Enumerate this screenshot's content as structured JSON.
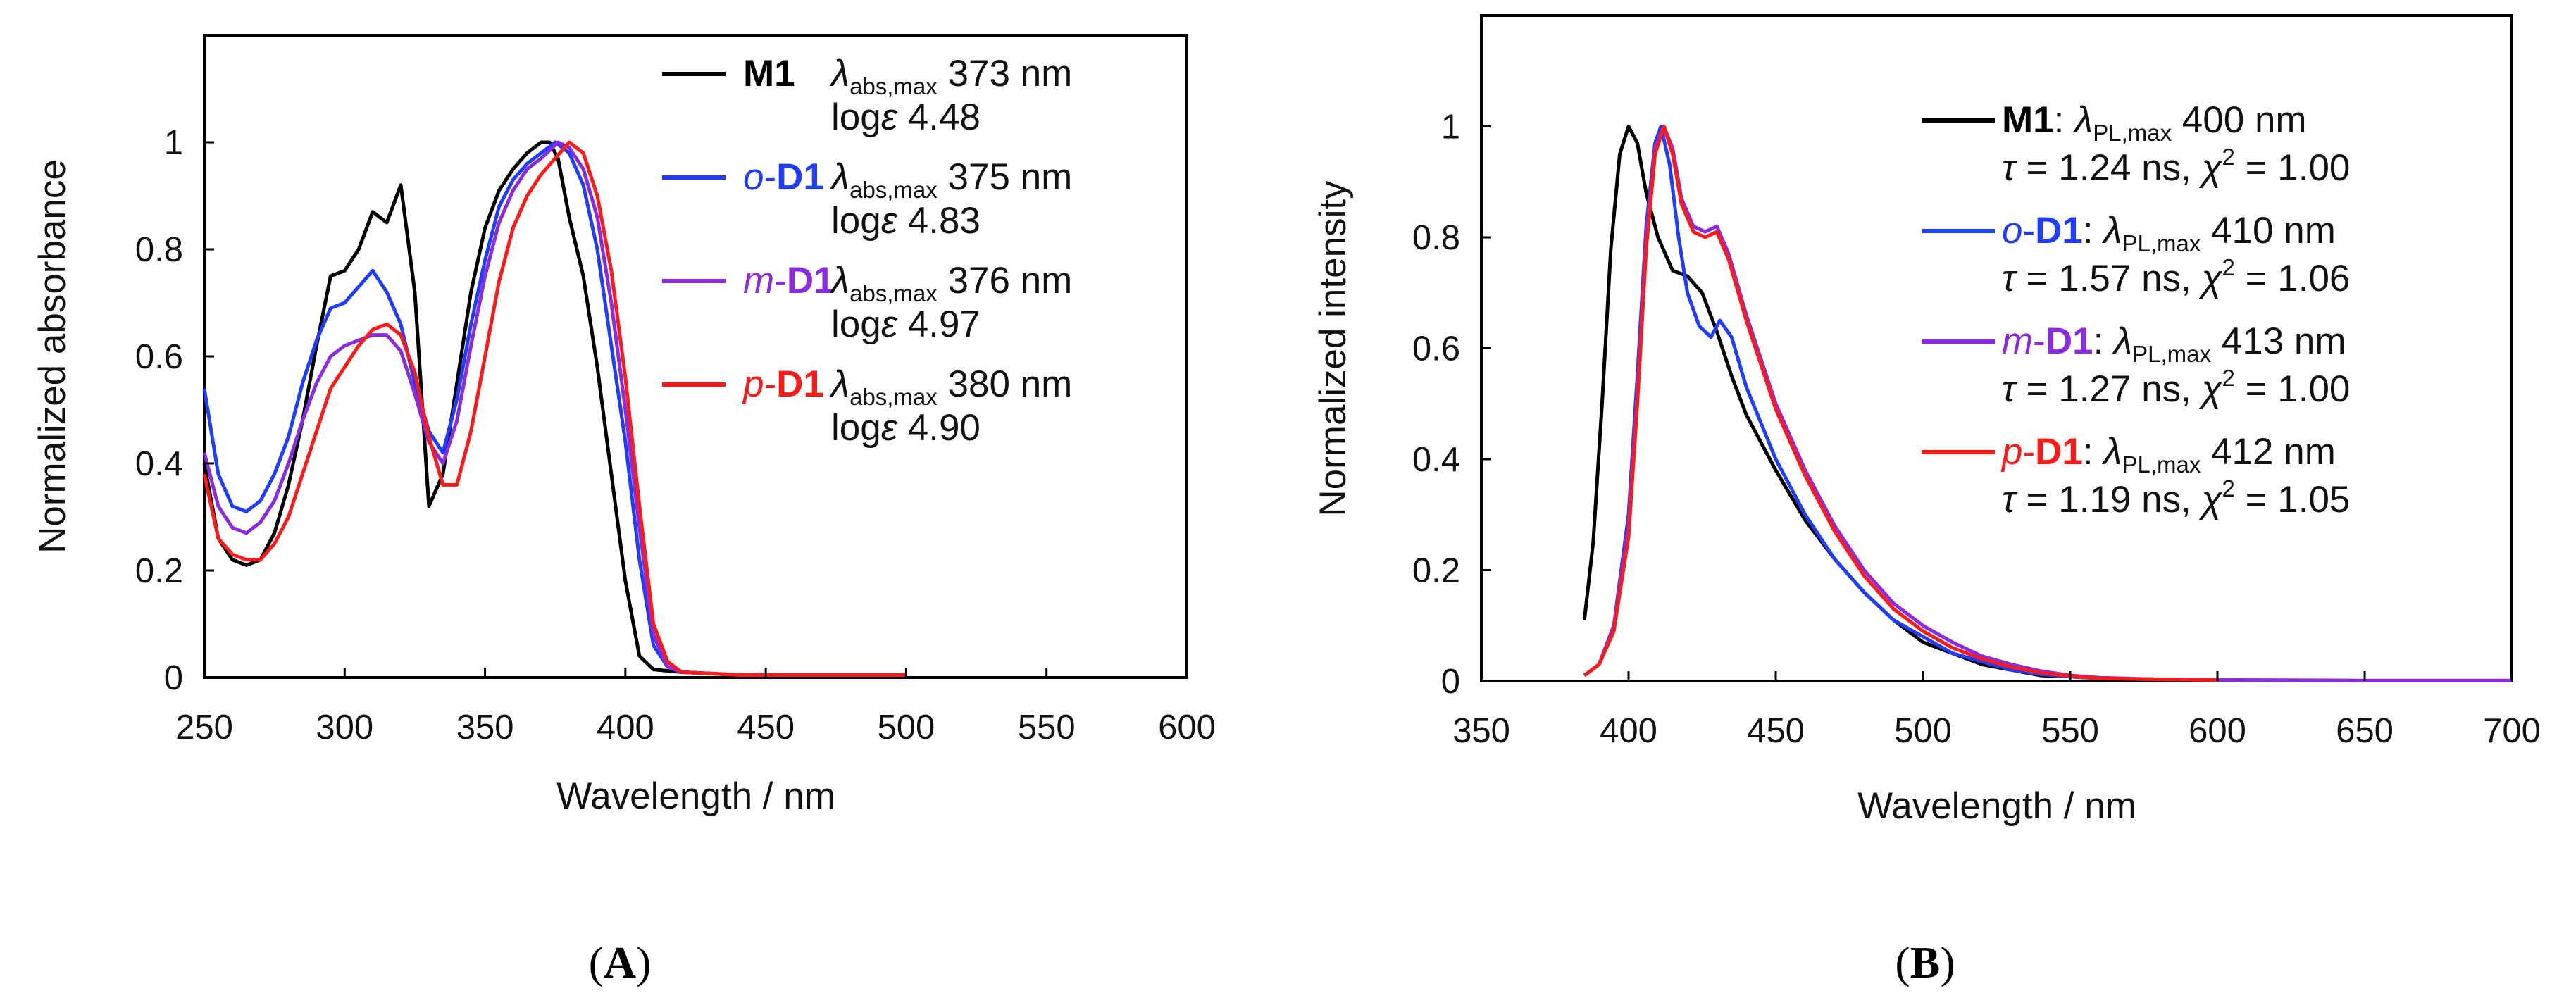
{
  "panels": [
    {
      "label": "A",
      "legend": [
        {
          "name": "M1",
          "color": "#000000",
          "label_style": "bold",
          "prefix_text": "",
          "italic_prefix": "",
          "bold_part": "M1",
          "colon": "",
          "sym": "λ",
          "sub": "abs,max",
          "value": "373 nm",
          "line2": {
            "a": "log",
            "b": "ε",
            "c": " 4.48"
          }
        },
        {
          "name": "o-D1",
          "color": "#1f3cff",
          "italic_prefix": "o",
          "bold_part": "D1",
          "colon": "",
          "sym": "λ",
          "sub": "abs,max",
          "value": "375 nm",
          "line2": {
            "a": "log",
            "b": "ε",
            "c": " 4.83"
          }
        },
        {
          "name": "m-D1",
          "color": "#8a2be2",
          "italic_prefix": "m",
          "bold_part": "D1",
          "colon": "",
          "sym": "λ",
          "sub": "abs,max",
          "value": "376 nm",
          "line2": {
            "a": "log",
            "b": "ε",
            "c": " 4.97"
          }
        },
        {
          "name": "p-D1",
          "color": "#ff1a1a",
          "italic_prefix": "p",
          "bold_part": "D1",
          "colon": "",
          "sym": "λ",
          "sub": "abs,max",
          "value": "380 nm",
          "line2": {
            "a": "log",
            "b": "ε",
            "c": " 4.90"
          }
        }
      ]
    },
    {
      "label": "B",
      "legend": [
        {
          "name": "M1",
          "color": "#000000",
          "italic_prefix": "",
          "bold_part": "M1",
          "colon": ":",
          "sym": "λ",
          "sub": "PL,max",
          "value": "400 nm",
          "line2": {
            "tau": "τ",
            "tauval": " = 1.24 ns, ",
            "chi": "χ",
            "sup": "2",
            "chival": " = 1.00"
          }
        },
        {
          "name": "o-D1",
          "color": "#1f3cff",
          "italic_prefix": "o",
          "bold_part": "D1",
          "colon": ":",
          "sym": "λ",
          "sub": "PL,max",
          "value": "410 nm",
          "line2": {
            "tau": "τ",
            "tauval": " = 1.57 ns, ",
            "chi": "χ",
            "sup": "2",
            "chival": " = 1.06"
          }
        },
        {
          "name": "m-D1",
          "color": "#8a2be2",
          "italic_prefix": "m",
          "bold_part": "D1",
          "colon": ":",
          "sym": "λ",
          "sub": "PL,max",
          "value": "413 nm",
          "line2": {
            "tau": "τ",
            "tauval": " = 1.27 ns, ",
            "chi": "χ",
            "sup": "2",
            "chival": " = 1.00"
          }
        },
        {
          "name": "p-D1",
          "color": "#ff1a1a",
          "italic_prefix": "p",
          "bold_part": "D1",
          "colon": ":",
          "sym": "λ",
          "sub": "PL,max",
          "value": "412 nm",
          "line2": {
            "tau": "τ",
            "tauval": " = 1.19 ns, ",
            "chi": "χ",
            "sup": "2",
            "chival": " = 1.05"
          }
        }
      ]
    }
  ],
  "chart_data": [
    {
      "type": "line",
      "panel": "A",
      "title": "",
      "xlabel": "Wavelength / nm",
      "ylabel": "Normalized absorbance",
      "xlim": [
        250,
        600
      ],
      "ylim": [
        0,
        1.2
      ],
      "xticks": [
        250,
        300,
        350,
        400,
        450,
        500,
        550,
        600
      ],
      "yticks": [
        0,
        0.2,
        0.4,
        0.6,
        0.8,
        1
      ],
      "ytick_labels": [
        "0",
        "0.2",
        "0.4",
        "0.6",
        "0.8",
        "1"
      ],
      "grid": false,
      "legend_position": "top-right",
      "series": [
        {
          "name": "M1",
          "color": "#000000",
          "x": [
            250,
            255,
            260,
            265,
            270,
            275,
            280,
            285,
            290,
            295,
            300,
            305,
            310,
            315,
            320,
            325,
            330,
            335,
            340,
            345,
            350,
            355,
            360,
            365,
            370,
            373,
            376,
            380,
            385,
            390,
            395,
            400,
            405,
            410,
            420,
            440,
            460,
            480,
            500
          ],
          "y": [
            0.4,
            0.26,
            0.22,
            0.21,
            0.22,
            0.27,
            0.36,
            0.48,
            0.62,
            0.75,
            0.76,
            0.8,
            0.87,
            0.85,
            0.92,
            0.72,
            0.32,
            0.38,
            0.55,
            0.72,
            0.84,
            0.91,
            0.95,
            0.98,
            1.0,
            1.0,
            0.97,
            0.86,
            0.75,
            0.58,
            0.38,
            0.18,
            0.04,
            0.015,
            0.01,
            0.005,
            0.005,
            0.005,
            0.005
          ]
        },
        {
          "name": "o-D1",
          "color": "#1f3cff",
          "x": [
            250,
            255,
            260,
            265,
            270,
            275,
            280,
            285,
            290,
            295,
            300,
            305,
            310,
            315,
            320,
            325,
            330,
            335,
            340,
            345,
            350,
            355,
            360,
            365,
            370,
            375,
            380,
            385,
            390,
            395,
            400,
            405,
            410,
            415,
            420,
            440,
            460,
            480,
            500
          ],
          "y": [
            0.54,
            0.38,
            0.32,
            0.31,
            0.33,
            0.38,
            0.45,
            0.55,
            0.63,
            0.69,
            0.7,
            0.73,
            0.76,
            0.72,
            0.66,
            0.55,
            0.46,
            0.42,
            0.52,
            0.66,
            0.78,
            0.88,
            0.93,
            0.96,
            0.98,
            1.0,
            0.98,
            0.92,
            0.8,
            0.62,
            0.44,
            0.22,
            0.06,
            0.02,
            0.01,
            0.005,
            0.005,
            0.005,
            0.005
          ]
        },
        {
          "name": "m-D1",
          "color": "#8a2be2",
          "x": [
            250,
            255,
            260,
            265,
            270,
            275,
            280,
            285,
            290,
            295,
            300,
            305,
            310,
            315,
            320,
            325,
            330,
            335,
            340,
            345,
            350,
            355,
            360,
            365,
            370,
            376,
            380,
            385,
            390,
            395,
            400,
            405,
            410,
            415,
            420,
            440,
            460,
            480,
            500
          ],
          "y": [
            0.42,
            0.32,
            0.28,
            0.27,
            0.29,
            0.33,
            0.4,
            0.48,
            0.55,
            0.6,
            0.62,
            0.63,
            0.64,
            0.64,
            0.61,
            0.53,
            0.44,
            0.4,
            0.48,
            0.62,
            0.75,
            0.85,
            0.91,
            0.95,
            0.97,
            1.0,
            0.99,
            0.95,
            0.86,
            0.7,
            0.5,
            0.28,
            0.08,
            0.02,
            0.01,
            0.005,
            0.005,
            0.005,
            0.005
          ]
        },
        {
          "name": "p-D1",
          "color": "#ff1a1a",
          "x": [
            250,
            255,
            260,
            265,
            270,
            275,
            280,
            285,
            290,
            295,
            300,
            305,
            310,
            315,
            320,
            325,
            330,
            335,
            340,
            345,
            350,
            355,
            360,
            365,
            370,
            375,
            380,
            385,
            390,
            395,
            400,
            405,
            410,
            415,
            420,
            440,
            460,
            480,
            500
          ],
          "y": [
            0.38,
            0.26,
            0.23,
            0.22,
            0.22,
            0.25,
            0.3,
            0.38,
            0.46,
            0.54,
            0.58,
            0.62,
            0.65,
            0.66,
            0.64,
            0.57,
            0.45,
            0.36,
            0.36,
            0.46,
            0.6,
            0.74,
            0.84,
            0.9,
            0.94,
            0.97,
            1.0,
            0.98,
            0.9,
            0.76,
            0.56,
            0.32,
            0.1,
            0.03,
            0.01,
            0.005,
            0.005,
            0.005,
            0.005
          ]
        }
      ]
    },
    {
      "type": "line",
      "panel": "B",
      "title": "",
      "xlabel": "Wavelength / nm",
      "ylabel": "Normalized intensity",
      "xlim": [
        350,
        700
      ],
      "ylim": [
        0,
        1.2
      ],
      "xticks": [
        350,
        400,
        450,
        500,
        550,
        600,
        650,
        700
      ],
      "yticks": [
        0,
        0.2,
        0.4,
        0.6,
        0.8,
        1
      ],
      "ytick_labels": [
        "0",
        "0.2",
        "0.4",
        "0.6",
        "0.8",
        "1"
      ],
      "grid": false,
      "legend_position": "top-right",
      "series": [
        {
          "name": "M1",
          "color": "#000000",
          "x": [
            385,
            388,
            391,
            394,
            397,
            400,
            403,
            406,
            410,
            415,
            420,
            425,
            430,
            435,
            440,
            450,
            460,
            470,
            480,
            490,
            500,
            510,
            520,
            530,
            540,
            550,
            560,
            580,
            600
          ],
          "y": [
            0.11,
            0.25,
            0.5,
            0.78,
            0.95,
            1.0,
            0.97,
            0.88,
            0.8,
            0.74,
            0.73,
            0.7,
            0.63,
            0.55,
            0.48,
            0.38,
            0.29,
            0.22,
            0.16,
            0.11,
            0.07,
            0.05,
            0.03,
            0.02,
            0.01,
            0.008,
            0.005,
            0.003,
            0.002
          ]
        },
        {
          "name": "o-D1",
          "color": "#1f3cff",
          "x": [
            385,
            390,
            395,
            400,
            403,
            406,
            409,
            411,
            414,
            417,
            420,
            424,
            428,
            431,
            435,
            440,
            450,
            460,
            470,
            480,
            490,
            500,
            510,
            520,
            530,
            540,
            550,
            560,
            580,
            600
          ],
          "y": [
            0.01,
            0.03,
            0.1,
            0.3,
            0.55,
            0.82,
            0.97,
            1.0,
            0.93,
            0.8,
            0.7,
            0.64,
            0.62,
            0.65,
            0.62,
            0.53,
            0.4,
            0.3,
            0.22,
            0.16,
            0.11,
            0.08,
            0.05,
            0.035,
            0.02,
            0.012,
            0.008,
            0.005,
            0.003,
            0.002
          ]
        },
        {
          "name": "m-D1",
          "color": "#8a2be2",
          "x": [
            385,
            390,
            395,
            400,
            403,
            406,
            409,
            412,
            415,
            418,
            422,
            426,
            430,
            434,
            440,
            450,
            460,
            470,
            480,
            490,
            500,
            510,
            520,
            530,
            540,
            550,
            560,
            580,
            600,
            650,
            700
          ],
          "y": [
            0.01,
            0.03,
            0.1,
            0.28,
            0.52,
            0.8,
            0.96,
            1.0,
            0.96,
            0.87,
            0.82,
            0.81,
            0.82,
            0.77,
            0.66,
            0.5,
            0.38,
            0.28,
            0.2,
            0.14,
            0.1,
            0.07,
            0.045,
            0.03,
            0.018,
            0.01,
            0.006,
            0.003,
            0.002,
            0.001,
            0.001
          ]
        },
        {
          "name": "p-D1",
          "color": "#ff1a1a",
          "x": [
            385,
            390,
            395,
            400,
            403,
            406,
            409,
            412,
            415,
            418,
            422,
            426,
            430,
            434,
            440,
            450,
            460,
            470,
            480,
            490,
            500,
            510,
            520,
            530,
            540,
            550,
            560,
            580,
            600
          ],
          "y": [
            0.01,
            0.03,
            0.09,
            0.26,
            0.5,
            0.78,
            0.95,
            1.0,
            0.95,
            0.86,
            0.81,
            0.8,
            0.81,
            0.76,
            0.65,
            0.49,
            0.37,
            0.27,
            0.19,
            0.13,
            0.09,
            0.06,
            0.04,
            0.025,
            0.015,
            0.009,
            0.005,
            0.003,
            0.002
          ]
        }
      ]
    }
  ]
}
